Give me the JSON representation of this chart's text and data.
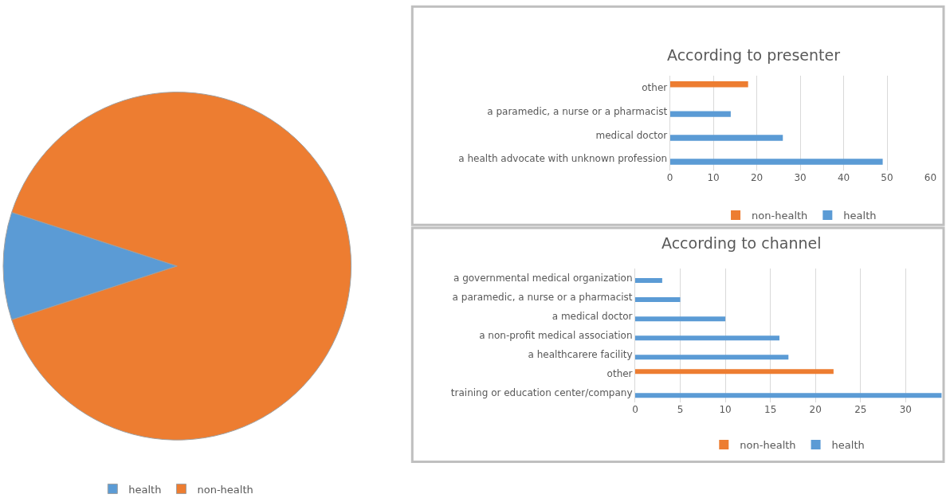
{
  "chart_data": [
    {
      "type": "pie",
      "categories": [
        "health",
        "non-health"
      ],
      "values": [
        10,
        90
      ],
      "colors": [
        "#5b9bd5",
        "#ed7d31"
      ],
      "legend": "bottom"
    },
    {
      "type": "bar",
      "title": "According to presenter",
      "orientation": "horizontal",
      "categories": [
        "other",
        "a paramedic, a nurse or a pharmacist",
        "medical doctor",
        "a health advocate with unknown profession"
      ],
      "series": [
        {
          "name": "non-health",
          "color": "#ed7d31",
          "values": [
            18,
            null,
            null,
            null
          ]
        },
        {
          "name": "health",
          "color": "#5b9bd5",
          "values": [
            null,
            14,
            26,
            49
          ]
        }
      ],
      "xlim": [
        0,
        60
      ],
      "xticks": [
        0,
        10,
        20,
        30,
        40,
        50,
        60
      ],
      "grid": "x",
      "legend": "bottom"
    },
    {
      "type": "bar",
      "title": "According to channel",
      "orientation": "horizontal",
      "categories": [
        "a governmental medical organization",
        "a paramedic, a nurse or a pharmacist",
        "a medical doctor",
        "a non-profit medical association",
        "a healthcarere facility",
        "other",
        "training or education center/company"
      ],
      "series": [
        {
          "name": "non-health",
          "color": "#ed7d31",
          "values": [
            null,
            null,
            null,
            null,
            null,
            22,
            null
          ]
        },
        {
          "name": "health",
          "color": "#5b9bd5",
          "values": [
            3,
            5,
            10,
            16,
            17,
            null,
            34
          ]
        }
      ],
      "xlim": [
        0,
        34
      ],
      "xticks": [
        0,
        5,
        10,
        15,
        20,
        25,
        30
      ],
      "grid": "x",
      "legend": "bottom"
    }
  ]
}
